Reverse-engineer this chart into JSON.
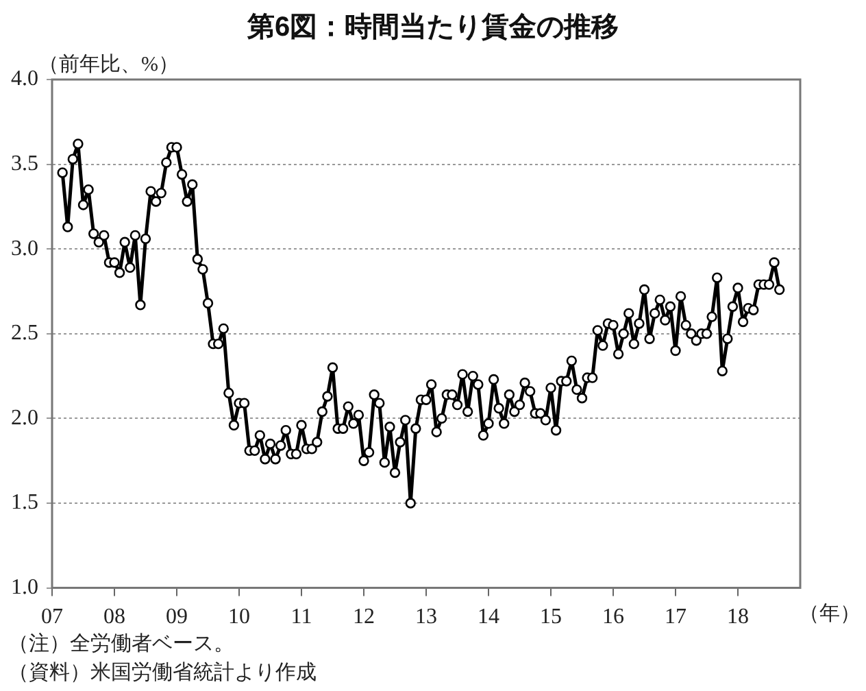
{
  "chart_data": {
    "type": "line",
    "title": "第6図：時間当たり賃金の推移",
    "ylabel": "（前年比、%）",
    "xlabel": "（年）",
    "annotations": [
      "（注）全労働者ベース。",
      "（資料）米国労働省統計より作成"
    ],
    "x": [
      "2007-03",
      "2007-04",
      "2007-05",
      "2007-06",
      "2007-07",
      "2007-08",
      "2007-09",
      "2007-10",
      "2007-11",
      "2007-12",
      "2008-01",
      "2008-02",
      "2008-03",
      "2008-04",
      "2008-05",
      "2008-06",
      "2008-07",
      "2008-08",
      "2008-09",
      "2008-10",
      "2008-11",
      "2008-12",
      "2009-01",
      "2009-02",
      "2009-03",
      "2009-04",
      "2009-05",
      "2009-06",
      "2009-07",
      "2009-08",
      "2009-09",
      "2009-10",
      "2009-11",
      "2009-12",
      "2010-01",
      "2010-02",
      "2010-03",
      "2010-04",
      "2010-05",
      "2010-06",
      "2010-07",
      "2010-08",
      "2010-09",
      "2010-10",
      "2010-11",
      "2010-12",
      "2011-01",
      "2011-02",
      "2011-03",
      "2011-04",
      "2011-05",
      "2011-06",
      "2011-07",
      "2011-08",
      "2011-09",
      "2011-10",
      "2011-11",
      "2011-12",
      "2012-01",
      "2012-02",
      "2012-03",
      "2012-04",
      "2012-05",
      "2012-06",
      "2012-07",
      "2012-08",
      "2012-09",
      "2012-10",
      "2012-11",
      "2012-12",
      "2013-01",
      "2013-02",
      "2013-03",
      "2013-04",
      "2013-05",
      "2013-06",
      "2013-07",
      "2013-08",
      "2013-09",
      "2013-10",
      "2013-11",
      "2013-12",
      "2014-01",
      "2014-02",
      "2014-03",
      "2014-04",
      "2014-05",
      "2014-06",
      "2014-07",
      "2014-08",
      "2014-09",
      "2014-10",
      "2014-11",
      "2014-12",
      "2015-01",
      "2015-02",
      "2015-03",
      "2015-04",
      "2015-05",
      "2015-06",
      "2015-07",
      "2015-08",
      "2015-09",
      "2015-10",
      "2015-11",
      "2015-12",
      "2016-01",
      "2016-02",
      "2016-03",
      "2016-04",
      "2016-05",
      "2016-06",
      "2016-07",
      "2016-08",
      "2016-09",
      "2016-10",
      "2016-11",
      "2016-12",
      "2017-01",
      "2017-02",
      "2017-03",
      "2017-04",
      "2017-05",
      "2017-06",
      "2017-07",
      "2017-08",
      "2017-09",
      "2017-10",
      "2017-11",
      "2017-12",
      "2018-01",
      "2018-02",
      "2018-03",
      "2018-04",
      "2018-05",
      "2018-06",
      "2018-07",
      "2018-08",
      "2018-09"
    ],
    "series": [
      {
        "color": "#000000",
        "values": [
          3.45,
          3.13,
          3.53,
          3.62,
          3.26,
          3.35,
          3.09,
          3.04,
          3.08,
          2.92,
          2.92,
          2.86,
          3.04,
          2.89,
          3.08,
          2.67,
          3.06,
          3.34,
          3.28,
          3.33,
          3.51,
          3.6,
          3.6,
          3.44,
          3.28,
          3.38,
          2.94,
          2.88,
          2.68,
          2.44,
          2.44,
          2.53,
          2.15,
          1.96,
          2.09,
          2.09,
          1.81,
          1.81,
          1.9,
          1.76,
          1.85,
          1.76,
          1.84,
          1.93,
          1.79,
          1.79,
          1.96,
          1.82,
          1.82,
          1.86,
          2.04,
          2.13,
          2.3,
          1.94,
          1.94,
          2.07,
          1.97,
          2.02,
          1.75,
          1.8,
          2.14,
          2.09,
          1.74,
          1.95,
          1.68,
          1.86,
          1.99,
          1.5,
          1.94,
          2.11,
          2.11,
          2.2,
          1.92,
          2.0,
          2.14,
          2.14,
          2.08,
          2.26,
          2.04,
          2.25,
          2.2,
          1.9,
          1.97,
          2.23,
          2.06,
          1.97,
          2.14,
          2.04,
          2.08,
          2.21,
          2.16,
          2.03,
          2.03,
          1.99,
          2.18,
          1.93,
          2.22,
          2.22,
          2.34,
          2.17,
          2.12,
          2.24,
          2.24,
          2.52,
          2.43,
          2.56,
          2.55,
          2.38,
          2.5,
          2.62,
          2.44,
          2.56,
          2.76,
          2.47,
          2.62,
          2.7,
          2.58,
          2.66,
          2.4,
          2.72,
          2.55,
          2.5,
          2.46,
          2.5,
          2.5,
          2.6,
          2.83,
          2.28,
          2.47,
          2.66,
          2.77,
          2.57,
          2.65,
          2.64,
          2.79,
          2.79,
          2.79,
          2.92,
          2.76
        ]
      }
    ],
    "xlim": [
      "2007-01",
      "2019-01"
    ],
    "xticks": [
      {
        "value": "2007-01",
        "label": "07"
      },
      {
        "value": "2008-01",
        "label": "08"
      },
      {
        "value": "2009-01",
        "label": "09"
      },
      {
        "value": "2010-01",
        "label": "10"
      },
      {
        "value": "2011-01",
        "label": "11"
      },
      {
        "value": "2012-01",
        "label": "12"
      },
      {
        "value": "2013-01",
        "label": "13"
      },
      {
        "value": "2014-01",
        "label": "14"
      },
      {
        "value": "2015-01",
        "label": "15"
      },
      {
        "value": "2016-01",
        "label": "16"
      },
      {
        "value": "2017-01",
        "label": "17"
      },
      {
        "value": "2018-01",
        "label": "18"
      }
    ],
    "ylim": [
      1,
      4
    ],
    "yticks": [
      {
        "value": 1,
        "label": "1.0"
      },
      {
        "value": 1.5,
        "label": "1.5"
      },
      {
        "value": 2,
        "label": "2.0"
      },
      {
        "value": 2.5,
        "label": "2.5"
      },
      {
        "value": 3,
        "label": "3.0"
      },
      {
        "value": 3.5,
        "label": "3.5"
      },
      {
        "value": 4,
        "label": "4.0"
      }
    ],
    "grid": "y",
    "legend": false,
    "marker": "circle",
    "line_style": "solid"
  }
}
